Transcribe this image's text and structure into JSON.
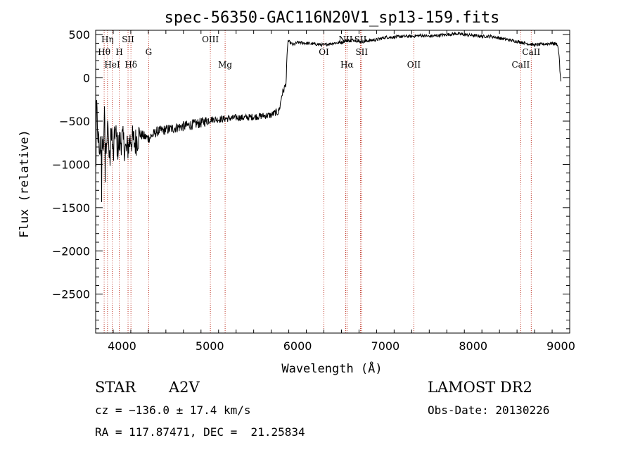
{
  "chart_data": {
    "type": "line",
    "title": "spec-56350-GAC116N20V1_sp13-159.fits",
    "xlabel": "Wavelength (Å)",
    "ylabel": "Flux (relative)",
    "xlim": [
      3700,
      9100
    ],
    "ylim": [
      -2950,
      550
    ],
    "xticks": [
      4000,
      5000,
      6000,
      7000,
      8000,
      9000
    ],
    "yticks": [
      -2500,
      -2000,
      -1500,
      -1000,
      -500,
      0,
      500
    ],
    "xtick_labels": [
      "4000",
      "5000",
      "6000",
      "7000",
      "8000",
      "9000"
    ],
    "ytick_labels": [
      "−2500",
      "−2000",
      "−1500",
      "−1000",
      "−500",
      "0",
      "500"
    ],
    "series": [
      {
        "x": [
          3700,
          3740,
          3770,
          3790,
          3800,
          3820,
          3840,
          3860,
          3880,
          3900,
          3920,
          3950,
          4000,
          4050,
          4100,
          4150,
          4200,
          4300,
          4400,
          4500,
          4600,
          4700,
          4800,
          4900,
          5000,
          5100,
          5200,
          5300,
          5400,
          5500,
          5600,
          5700,
          5750,
          5780,
          5800,
          5820,
          5850,
          5870,
          5880,
          5890,
          5900,
          5950,
          6000,
          6100,
          6200,
          6300,
          6400,
          6500,
          6550,
          6600,
          6650,
          6700,
          6750,
          6800,
          6900,
          7000,
          7100,
          7200,
          7300,
          7400,
          7500,
          7600,
          7700,
          7800,
          7900,
          8000,
          8100,
          8200,
          8300,
          8400,
          8500,
          8600,
          8700,
          8800,
          8900,
          8960,
          8980,
          8990,
          9000
        ],
        "y": [
          -200,
          -850,
          -750,
          -900,
          -400,
          -700,
          -600,
          -1000,
          -550,
          -950,
          -600,
          -800,
          -700,
          -850,
          -700,
          -750,
          -650,
          -700,
          -620,
          -600,
          -580,
          -560,
          -540,
          -520,
          -480,
          -480,
          -470,
          -460,
          -460,
          -450,
          -440,
          -430,
          -400,
          -400,
          -330,
          -200,
          -120,
          -50,
          250,
          430,
          420,
          380,
          410,
          400,
          390,
          380,
          400,
          410,
          430,
          430,
          440,
          420,
          420,
          430,
          440,
          470,
          470,
          480,
          480,
          490,
          480,
          490,
          500,
          510,
          500,
          490,
          480,
          480,
          460,
          440,
          420,
          400,
          380,
          390,
          400,
          390,
          260,
          50,
          -50
        ],
        "noise": [
          {
            "range": [
              3700,
              4200
            ],
            "amplitude": 180
          },
          {
            "range": [
              4200,
              5000
            ],
            "amplitude": 60
          },
          {
            "range": [
              5000,
              5880
            ],
            "amplitude": 40
          },
          {
            "range": [
              5880,
              9000
            ],
            "amplitude": 18
          }
        ]
      }
    ],
    "line_color": "#000000",
    "vline_color": "#c0392b",
    "spectral_lines": [
      {
        "label": "Hη",
        "x": 3835,
        "row": 0
      },
      {
        "label": "Hθ",
        "x": 3797,
        "row": 1
      },
      {
        "label": "HeI",
        "x": 3889,
        "row": 2
      },
      {
        "label": "SII",
        "x": 4069,
        "row": 0
      },
      {
        "label": "H",
        "x": 3969,
        "row": 1
      },
      {
        "label": "Hδ",
        "x": 4102,
        "row": 2
      },
      {
        "label": "G",
        "x": 4304,
        "row": 1
      },
      {
        "label": "OIII",
        "x": 5007,
        "row": 0
      },
      {
        "label": "Mg",
        "x": 5175,
        "row": 2
      },
      {
        "label": "OI",
        "x": 6300,
        "row": 1
      },
      {
        "label": "NII",
        "x": 6548,
        "row": 0
      },
      {
        "label": "SII",
        "x": 6717,
        "row": 0
      },
      {
        "label": "Hα",
        "x": 6563,
        "row": 2
      },
      {
        "label": "SII",
        "x": 6731,
        "row": 1
      },
      {
        "label": "OII",
        "x": 7325,
        "row": 2
      },
      {
        "label": "CaII",
        "x": 8662,
        "row": 1
      },
      {
        "label": "CaII",
        "x": 8542,
        "row": 2
      }
    ]
  },
  "info": {
    "object_class": "STAR",
    "subclass": "A2V",
    "survey": "LAMOST DR2",
    "cz": "cz = −136.0 ± 17.4 km/s",
    "obs_date": "Obs-Date: 20130226",
    "coords": "RA = 117.87471, DEC =  21.25834"
  }
}
